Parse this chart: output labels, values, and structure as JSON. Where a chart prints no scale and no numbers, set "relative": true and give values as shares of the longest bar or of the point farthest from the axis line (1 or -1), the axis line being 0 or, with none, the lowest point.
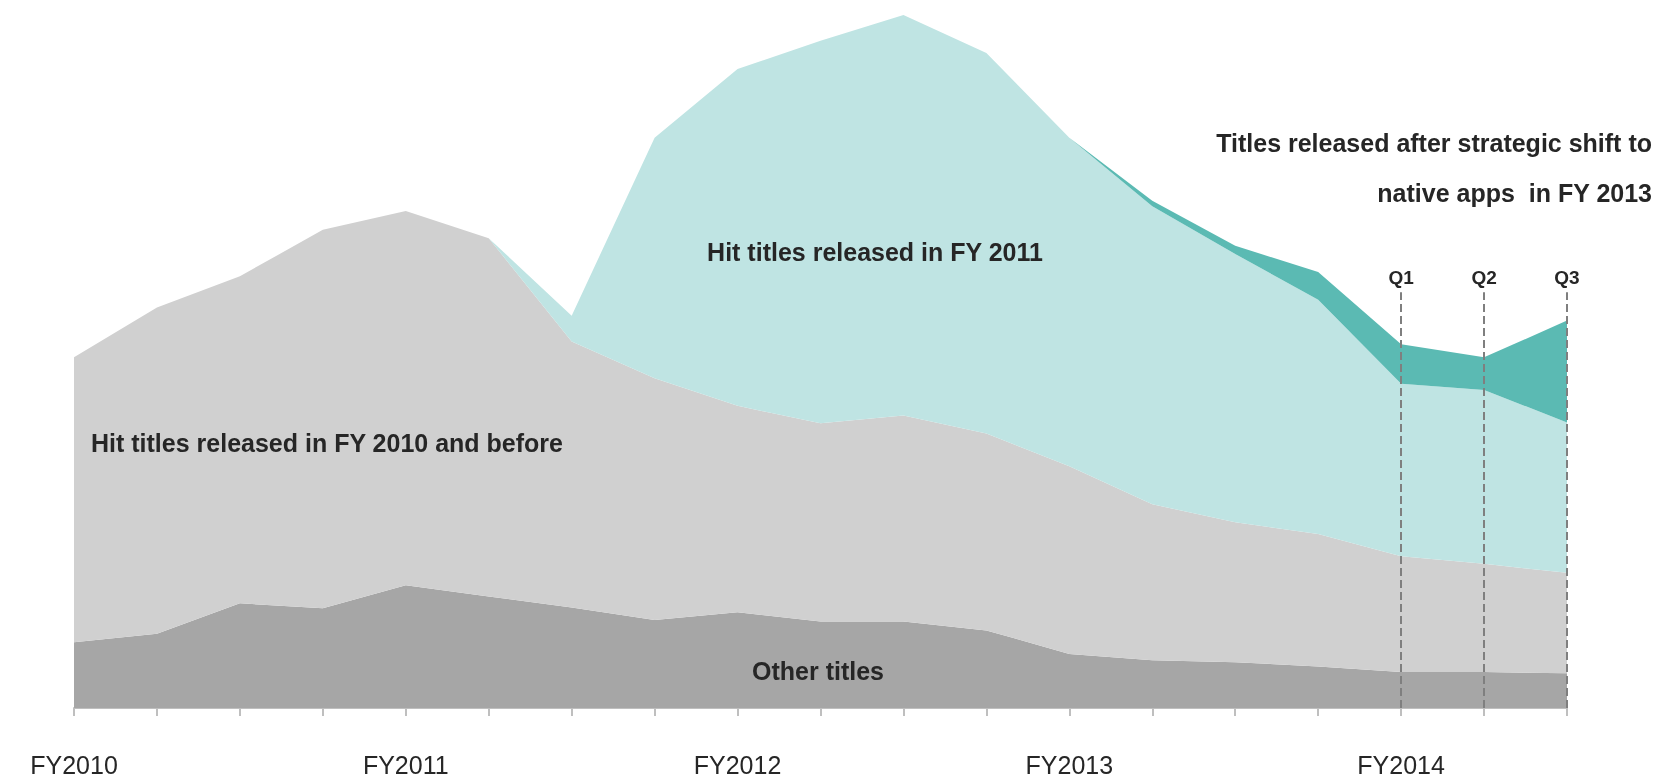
{
  "chart_data": {
    "type": "area",
    "stacked": true,
    "relative": true,
    "grid": false,
    "legend": false,
    "categories": [
      "FY2010",
      null,
      null,
      null,
      "FY2011",
      null,
      null,
      null,
      "FY2012",
      null,
      null,
      null,
      "FY2013",
      null,
      null,
      null,
      "FY2014",
      null,
      null
    ],
    "series": [
      {
        "name": "Other titles",
        "color": "#a6a6a6",
        "values": [
          0.095,
          0.107,
          0.151,
          0.144,
          0.177,
          0.161,
          0.145,
          0.127,
          0.138,
          0.125,
          0.125,
          0.112,
          0.078,
          0.069,
          0.066,
          0.06,
          0.052,
          0.052,
          0.05
        ]
      },
      {
        "name": "Hit titles released in FY 2010 and before",
        "color": "#d0d0d0",
        "values": [
          0.411,
          0.471,
          0.472,
          0.546,
          0.54,
          0.517,
          0.384,
          0.349,
          0.298,
          0.286,
          0.297,
          0.284,
          0.271,
          0.225,
          0.202,
          0.191,
          0.167,
          0.156,
          0.145
        ]
      },
      {
        "name": "Hit titles released in FY 2011",
        "color": "#bfe4e3",
        "values": [
          0,
          0,
          0,
          0,
          0,
          0,
          0.037,
          0.347,
          0.486,
          0.552,
          0.578,
          0.549,
          0.474,
          0.43,
          0.387,
          0.338,
          0.249,
          0.251,
          0.217
        ]
      },
      {
        "name": "Titles released after strategic shift to native apps  in FY 2013",
        "color": "#5bbab3",
        "values": [
          0,
          0,
          0,
          0,
          0,
          0,
          0,
          0,
          0,
          0,
          0,
          0,
          0,
          0.008,
          0.012,
          0.04,
          0.057,
          0.047,
          0.147
        ]
      }
    ],
    "ref_lines": [
      {
        "axis": "x",
        "value": "FY2014",
        "label": "Q1",
        "color": "#7f7f7f",
        "line_style": "dashed"
      }
    ],
    "annotations": [
      "Q2",
      "Q3"
    ]
  }
}
